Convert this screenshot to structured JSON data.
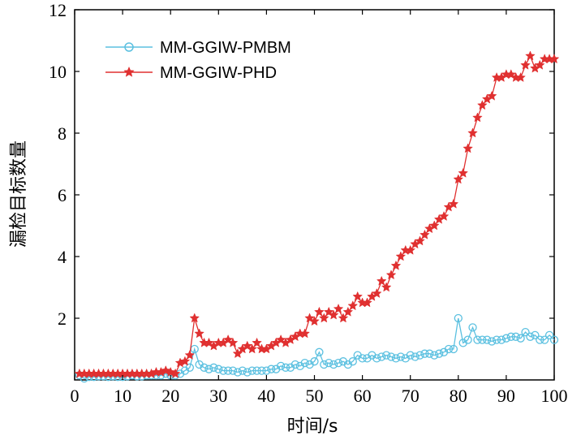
{
  "chart_data": {
    "type": "line",
    "xlabel": "时间/s",
    "ylabel": "漏检目标数量",
    "xlim": [
      0,
      100
    ],
    "ylim": [
      0,
      12
    ],
    "xticks": [
      0,
      10,
      20,
      30,
      40,
      50,
      60,
      70,
      80,
      90,
      100
    ],
    "yticks": [
      2,
      4,
      6,
      8,
      10,
      12
    ],
    "grid": false,
    "legend_position": "top-left",
    "series": [
      {
        "name": "MM-GGIW-PMBM",
        "color": "#5bc0e0",
        "marker": "circle",
        "x": [
          1,
          2,
          3,
          4,
          5,
          6,
          7,
          8,
          9,
          10,
          11,
          12,
          13,
          14,
          15,
          16,
          17,
          18,
          19,
          20,
          21,
          22,
          23,
          24,
          25,
          26,
          27,
          28,
          29,
          30,
          31,
          32,
          33,
          34,
          35,
          36,
          37,
          38,
          39,
          40,
          41,
          42,
          43,
          44,
          45,
          46,
          47,
          48,
          49,
          50,
          51,
          52,
          53,
          54,
          55,
          56,
          57,
          58,
          59,
          60,
          61,
          62,
          63,
          64,
          65,
          66,
          67,
          68,
          69,
          70,
          71,
          72,
          73,
          74,
          75,
          76,
          77,
          78,
          79,
          80,
          81,
          82,
          83,
          84,
          85,
          86,
          87,
          88,
          89,
          90,
          91,
          92,
          93,
          94,
          95,
          96,
          97,
          98,
          99,
          100
        ],
        "values": [
          0.15,
          0.05,
          0.1,
          0.1,
          0.12,
          0.12,
          0.1,
          0.12,
          0.1,
          0.1,
          0.12,
          0.15,
          0.12,
          0.12,
          0.15,
          0.15,
          0.15,
          0.15,
          0.2,
          0.15,
          0.15,
          0.2,
          0.3,
          0.4,
          1.0,
          0.5,
          0.4,
          0.35,
          0.4,
          0.35,
          0.3,
          0.3,
          0.3,
          0.25,
          0.3,
          0.25,
          0.3,
          0.3,
          0.3,
          0.3,
          0.35,
          0.35,
          0.45,
          0.4,
          0.4,
          0.5,
          0.45,
          0.55,
          0.5,
          0.6,
          0.9,
          0.5,
          0.55,
          0.5,
          0.55,
          0.6,
          0.5,
          0.6,
          0.8,
          0.7,
          0.7,
          0.8,
          0.7,
          0.75,
          0.8,
          0.75,
          0.7,
          0.75,
          0.7,
          0.8,
          0.75,
          0.8,
          0.85,
          0.85,
          0.8,
          0.85,
          0.9,
          1.0,
          1.0,
          2.0,
          1.2,
          1.3,
          1.7,
          1.3,
          1.3,
          1.3,
          1.25,
          1.3,
          1.3,
          1.35,
          1.4,
          1.4,
          1.35,
          1.55,
          1.4,
          1.45,
          1.3,
          1.3,
          1.45,
          1.3
        ]
      },
      {
        "name": "MM-GGIW-PHD",
        "color": "#e03030",
        "marker": "star",
        "x": [
          1,
          2,
          3,
          4,
          5,
          6,
          7,
          8,
          9,
          10,
          11,
          12,
          13,
          14,
          15,
          16,
          17,
          18,
          19,
          20,
          21,
          22,
          23,
          24,
          25,
          26,
          27,
          28,
          29,
          30,
          31,
          32,
          33,
          34,
          35,
          36,
          37,
          38,
          39,
          40,
          41,
          42,
          43,
          44,
          45,
          46,
          47,
          48,
          49,
          50,
          51,
          52,
          53,
          54,
          55,
          56,
          57,
          58,
          59,
          60,
          61,
          62,
          63,
          64,
          65,
          66,
          67,
          68,
          69,
          70,
          71,
          72,
          73,
          74,
          75,
          76,
          77,
          78,
          79,
          80,
          81,
          82,
          83,
          84,
          85,
          86,
          87,
          88,
          89,
          90,
          91,
          92,
          93,
          94,
          95,
          96,
          97,
          98,
          99,
          100
        ],
        "values": [
          0.2,
          0.2,
          0.2,
          0.2,
          0.2,
          0.2,
          0.2,
          0.2,
          0.2,
          0.2,
          0.2,
          0.2,
          0.2,
          0.2,
          0.2,
          0.2,
          0.25,
          0.25,
          0.3,
          0.25,
          0.2,
          0.55,
          0.6,
          0.8,
          2.0,
          1.5,
          1.2,
          1.2,
          1.1,
          1.2,
          1.2,
          1.3,
          1.2,
          0.85,
          1.0,
          1.1,
          1.0,
          1.2,
          1.0,
          1.0,
          1.1,
          1.2,
          1.3,
          1.2,
          1.3,
          1.4,
          1.5,
          1.5,
          2.0,
          1.9,
          2.2,
          2.0,
          2.2,
          2.1,
          2.3,
          2.0,
          2.2,
          2.4,
          2.7,
          2.5,
          2.5,
          2.7,
          2.8,
          3.2,
          3.0,
          3.4,
          3.7,
          4.0,
          4.2,
          4.2,
          4.4,
          4.5,
          4.7,
          4.9,
          5.0,
          5.2,
          5.3,
          5.6,
          5.7,
          6.5,
          6.7,
          7.5,
          8.0,
          8.5,
          8.9,
          9.1,
          9.2,
          9.8,
          9.8,
          9.9,
          9.9,
          9.8,
          9.8,
          10.2,
          10.5,
          10.1,
          10.2,
          10.4,
          10.4,
          10.4
        ]
      }
    ]
  }
}
